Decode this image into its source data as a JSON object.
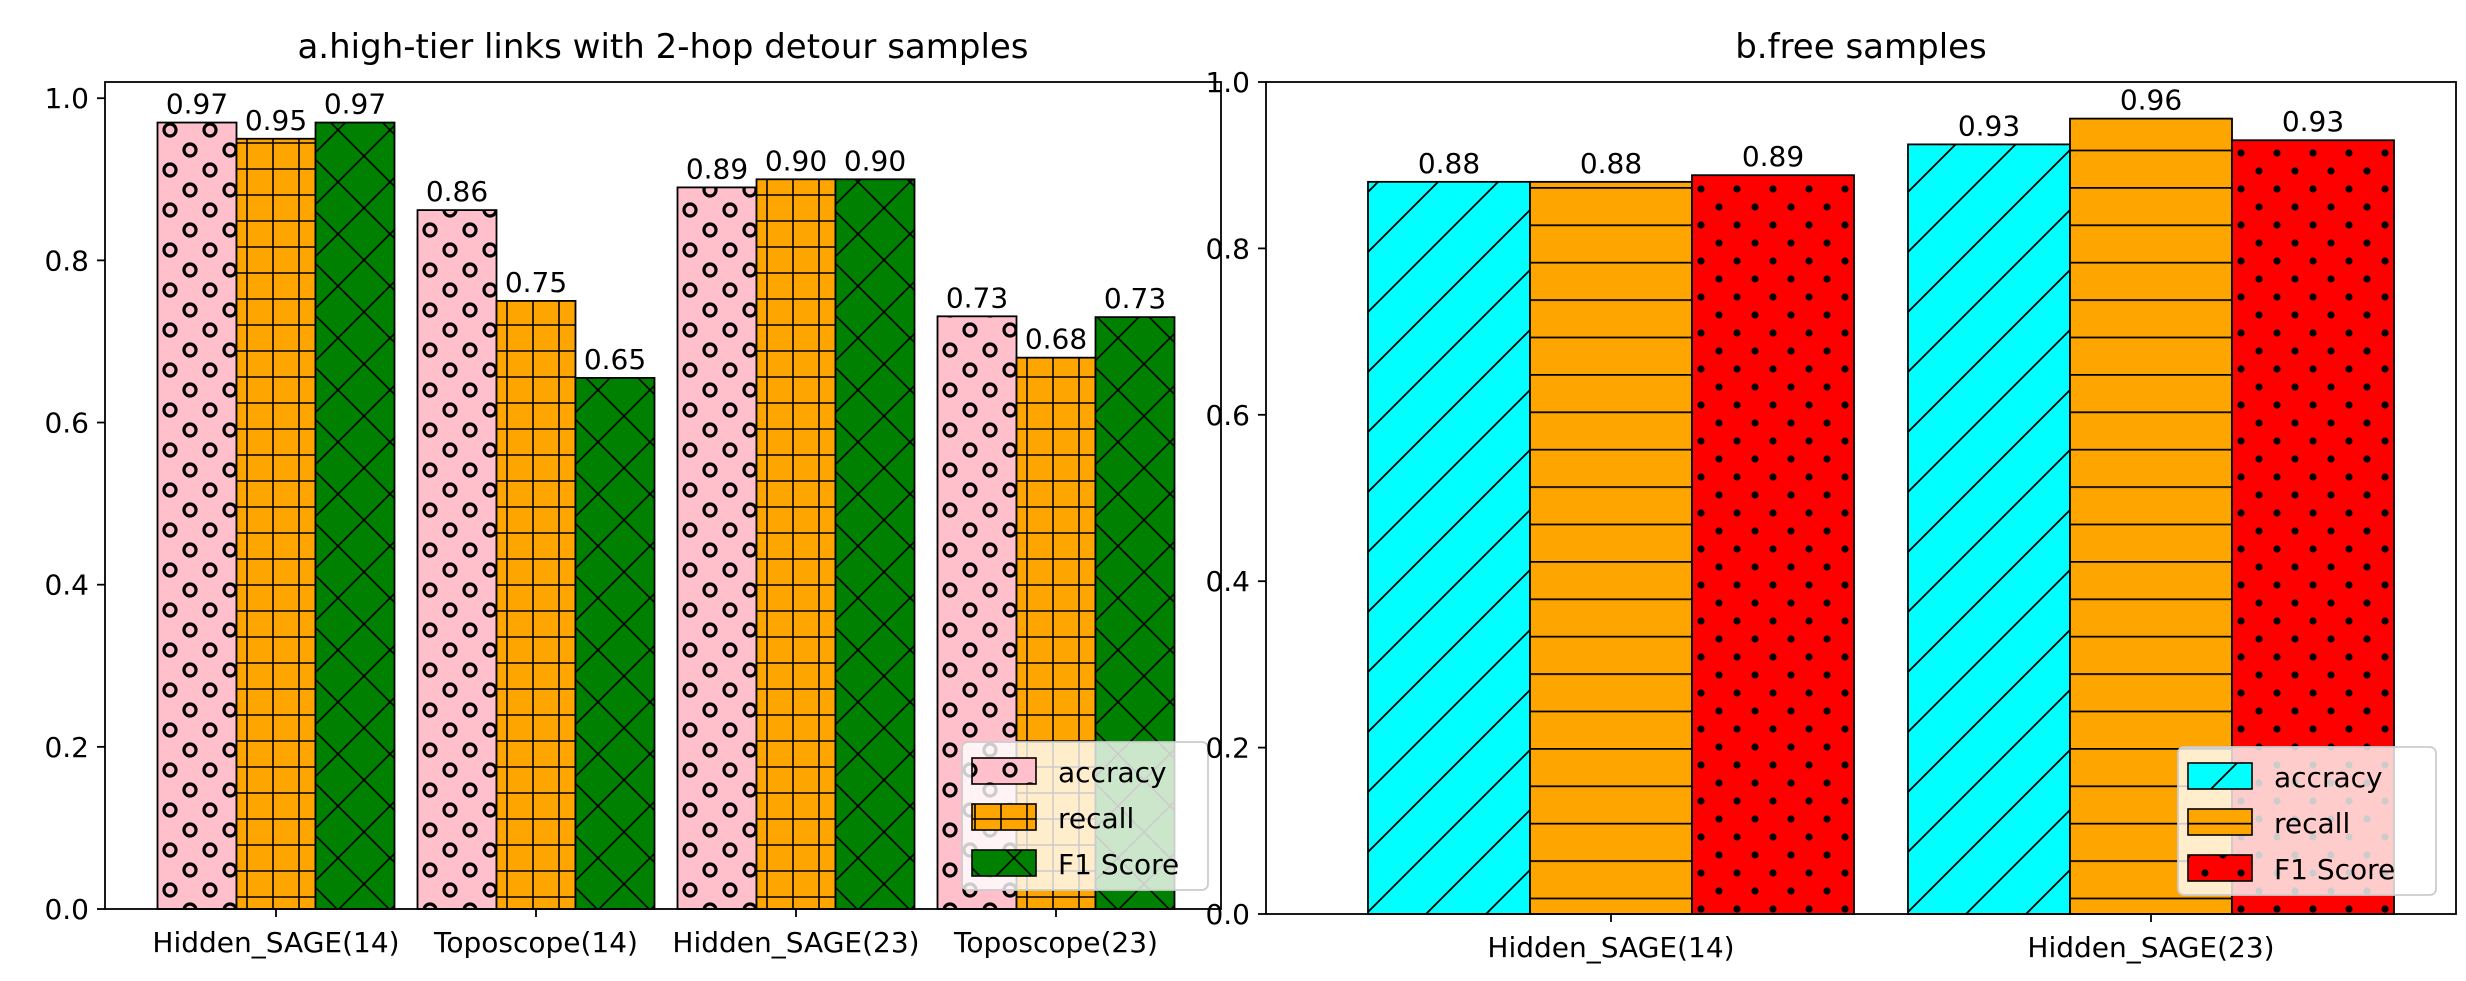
{
  "chart_data": [
    {
      "type": "bar",
      "title": "a.high-tier links with 2-hop detour samples",
      "xlabel": "",
      "ylabel": "",
      "ylim": [
        0,
        1.02
      ],
      "yticks": [
        "0.0",
        "0.2",
        "0.4",
        "0.6",
        "0.8",
        "1.0"
      ],
      "categories": [
        "Hidden_SAGE(14)",
        "Toposcope(14)",
        "Hidden_SAGE(23)",
        "Toposcope(23)"
      ],
      "series": [
        {
          "name": "accracy",
          "values": [
            0.97,
            0.862,
            0.89,
            0.731
          ],
          "labels": [
            "0.97",
            "0.86",
            "0.89",
            "0.73"
          ],
          "color": "#ffc0cb",
          "hatch": "circles"
        },
        {
          "name": "recall",
          "values": [
            0.95,
            0.75,
            0.9,
            0.68
          ],
          "labels": [
            "0.95",
            "0.75",
            "0.90",
            "0.68"
          ],
          "color": "#ffa500",
          "hatch": "grid"
        },
        {
          "name": "F1 Score",
          "values": [
            0.97,
            0.655,
            0.9,
            0.73
          ],
          "labels": [
            "0.97",
            "0.65",
            "0.90",
            "0.73"
          ],
          "color": "#008000",
          "hatch": "cross"
        }
      ],
      "legend_position": "lower-right",
      "grid": false
    },
    {
      "type": "bar",
      "title": "b.free samples",
      "xlabel": "",
      "ylabel": "",
      "ylim": [
        0,
        1.0
      ],
      "yticks": [
        "0.0",
        "0.2",
        "0.4",
        "0.6",
        "0.8",
        "1.0"
      ],
      "categories": [
        "Hidden_SAGE(14)",
        "Hidden_SAGE(23)"
      ],
      "series": [
        {
          "name": "accracy",
          "values": [
            0.88,
            0.925
          ],
          "labels": [
            "0.88",
            "0.93"
          ],
          "color": "#00ffff",
          "hatch": "diagonal"
        },
        {
          "name": "recall",
          "values": [
            0.88,
            0.956
          ],
          "labels": [
            "0.88",
            "0.96"
          ],
          "color": "#ffa500",
          "hatch": "horizontal"
        },
        {
          "name": "F1 Score",
          "values": [
            0.888,
            0.93
          ],
          "labels": [
            "0.89",
            "0.93"
          ],
          "color": "#ff0000",
          "hatch": "dots"
        }
      ],
      "legend_position": "lower-right",
      "grid": false
    }
  ]
}
